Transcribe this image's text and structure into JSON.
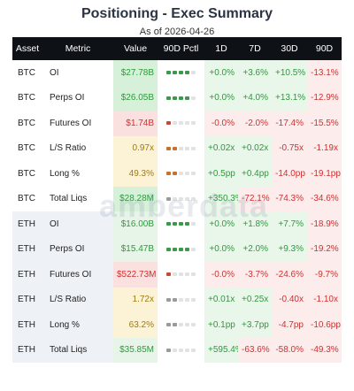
{
  "header": {
    "title": "Positioning - Exec Summary",
    "as_of": "As of 2026-04-26"
  },
  "watermark": "amberdata",
  "columns": [
    "Asset",
    "Metric",
    "Value",
    "90D Pctl",
    "1D",
    "7D",
    "30D",
    "90D"
  ],
  "rows": [
    {
      "asset": "BTC",
      "metric": "OI",
      "value": "$27.78B",
      "pctl": 4,
      "pctl_color": "green",
      "d1": "+0.0%",
      "d7": "+3.6%",
      "d30": "+10.5%",
      "d90": "-13.1%"
    },
    {
      "asset": "BTC",
      "metric": "Perps OI",
      "value": "$26.05B",
      "pctl": 4,
      "pctl_color": "green",
      "d1": "+0.0%",
      "d7": "+4.0%",
      "d30": "+13.1%",
      "d90": "-12.9%"
    },
    {
      "asset": "BTC",
      "metric": "Futures OI",
      "value": "$1.74B",
      "pctl": 1,
      "pctl_color": "red",
      "d1": "-0.0%",
      "d7": "-2.0%",
      "d30": "-17.4%",
      "d90": "-15.5%"
    },
    {
      "asset": "BTC",
      "metric": "L/S Ratio",
      "value": "0.97x",
      "pctl": 2,
      "pctl_color": "orange",
      "d1": "+0.02x",
      "d7": "+0.02x",
      "d30": "-0.75x",
      "d90": "-1.19x"
    },
    {
      "asset": "BTC",
      "metric": "Long %",
      "value": "49.3%",
      "pctl": 2,
      "pctl_color": "orange",
      "d1": "+0.5pp",
      "d7": "+0.4pp",
      "d30": "-14.0pp",
      "d90": "-19.1pp"
    },
    {
      "asset": "BTC",
      "metric": "Total Liqs",
      "value": "$28.28M",
      "pctl": 1,
      "pctl_color": "gray",
      "d1": "+350.3%",
      "d7": "-72.1%",
      "d30": "-74.3%",
      "d90": "-34.6%"
    },
    {
      "asset": "ETH",
      "metric": "OI",
      "value": "$16.00B",
      "pctl": 4,
      "pctl_color": "green",
      "d1": "+0.0%",
      "d7": "+1.8%",
      "d30": "+7.7%",
      "d90": "-18.9%"
    },
    {
      "asset": "ETH",
      "metric": "Perps OI",
      "value": "$15.47B",
      "pctl": 4,
      "pctl_color": "green",
      "d1": "+0.0%",
      "d7": "+2.0%",
      "d30": "+9.3%",
      "d90": "-19.2%"
    },
    {
      "asset": "ETH",
      "metric": "Futures OI",
      "value": "$522.73M",
      "pctl": 1,
      "pctl_color": "red",
      "d1": "-0.0%",
      "d7": "-3.7%",
      "d30": "-24.6%",
      "d90": "-9.7%"
    },
    {
      "asset": "ETH",
      "metric": "L/S Ratio",
      "value": "1.72x",
      "pctl": 2,
      "pctl_color": "gray",
      "d1": "+0.01x",
      "d7": "+0.25x",
      "d30": "-0.40x",
      "d90": "-1.10x"
    },
    {
      "asset": "ETH",
      "metric": "Long %",
      "value": "63.2%",
      "pctl": 2,
      "pctl_color": "gray",
      "d1": "+0.1pp",
      "d7": "+3.7pp",
      "d30": "-4.7pp",
      "d90": "-10.6pp"
    },
    {
      "asset": "ETH",
      "metric": "Total Liqs",
      "value": "$35.85M",
      "pctl": 1,
      "pctl_color": "gray",
      "d1": "+595.4%",
      "d7": "-63.6%",
      "d30": "-58.0%",
      "d90": "-49.3%"
    }
  ]
}
